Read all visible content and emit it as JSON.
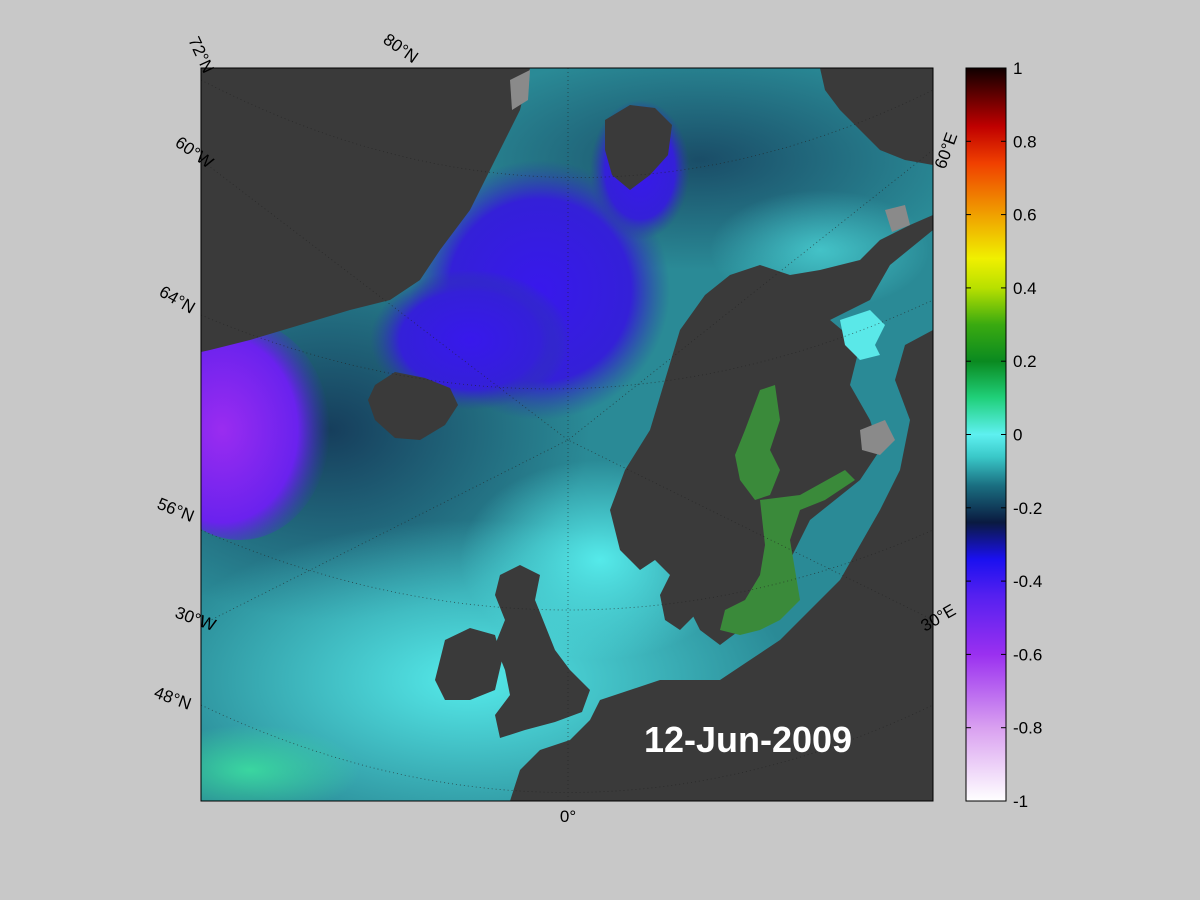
{
  "map": {
    "date_label": "12-Jun-2009",
    "lat_labels": [
      "72°N",
      "80°N",
      "64°N",
      "56°N",
      "48°N"
    ],
    "lon_labels": [
      "60°W",
      "30°W",
      "0°",
      "30°E",
      "60°E"
    ],
    "colors": {
      "land": "#3a3a3a",
      "ice": "#8a8a8a",
      "ocean_teal": "#2f8f98",
      "ocean_cyan": "#4fe0e0",
      "ocean_deep": "#1a4e68",
      "anomaly_blue": "#3a1ee8",
      "anomaly_purple": "#8a2aee",
      "baltic_green": "#3a8a3a"
    }
  },
  "colorbar": {
    "ticks": [
      "1",
      "0.8",
      "0.6",
      "0.4",
      "0.2",
      "0",
      "-0.2",
      "-0.4",
      "-0.6",
      "-0.8",
      "-1"
    ],
    "min": -1,
    "max": 1
  }
}
